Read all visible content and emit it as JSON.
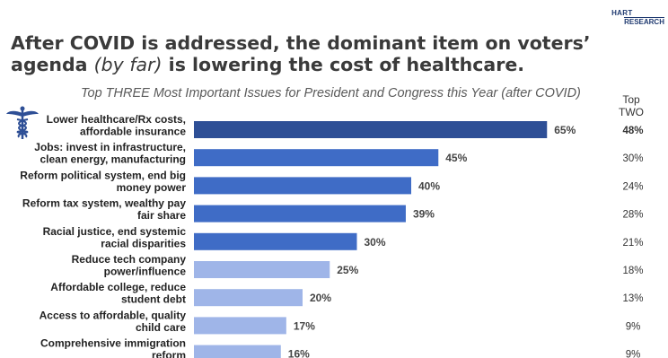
{
  "logo": {
    "line1": "HART",
    "line2": "RESEARCH"
  },
  "headline": {
    "part1": "After COVID is addressed, the dominant item on voters’ agenda ",
    "emph": "(by far)",
    "part2": " is lowering the cost of healthcare."
  },
  "chart_data": {
    "type": "bar",
    "orientation": "horizontal",
    "title": "Top THREE Most Important Issues for President and Congress this Year (after COVID)",
    "categories": [
      [
        "Lower healthcare/Rx costs,",
        "affordable insurance"
      ],
      [
        "Jobs: invest in infrastructure,",
        "clean energy, manufacturing"
      ],
      [
        "Reform political system, end big",
        "money power"
      ],
      [
        "Reform tax system, wealthy pay",
        "fair share"
      ],
      [
        "Racial justice, end systemic",
        "racial disparities"
      ],
      [
        "Reduce tech company",
        "power/influence"
      ],
      [
        "Affordable college, reduce",
        "student debt"
      ],
      [
        "Access to affordable, quality",
        "child care"
      ],
      [
        "Comprehensive immigration",
        "reform"
      ]
    ],
    "values": [
      65,
      45,
      40,
      39,
      30,
      25,
      20,
      17,
      16
    ],
    "value_labels": [
      "65%",
      "45%",
      "40%",
      "39%",
      "30%",
      "25%",
      "20%",
      "17%",
      "16%"
    ],
    "xlim": [
      0,
      100
    ],
    "top_two": {
      "header": [
        "Top",
        "TWO"
      ],
      "values": [
        "48%",
        "30%",
        "24%",
        "28%",
        "21%",
        "18%",
        "13%",
        "9%",
        "9%"
      ]
    },
    "colors": {
      "first": "#2e4f96",
      "mid": "#3f6cc6",
      "light": "#9fb5e8",
      "highlight_text": "#2e4f96"
    }
  }
}
